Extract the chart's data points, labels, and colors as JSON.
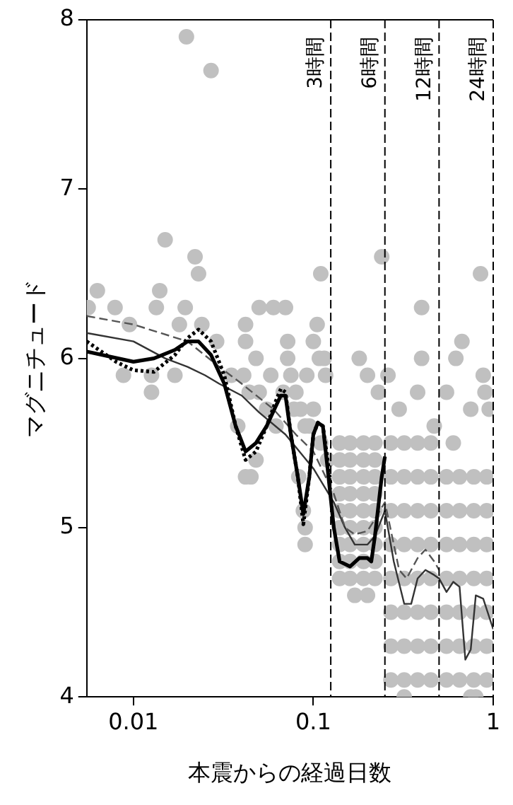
{
  "chart_data": {
    "type": "scatter",
    "xlabel": "本震からの経過日数",
    "ylabel": "マグニチュード",
    "log": "x",
    "xlim": [
      0.0055,
      1
    ],
    "xticks": [
      0.01,
      0.1,
      1
    ],
    "ylim": [
      4,
      8
    ],
    "yticks": [
      4,
      5,
      6,
      7,
      8
    ],
    "grid": false,
    "legend": false,
    "series": [
      {
        "color": "#c0c0c0",
        "marker": "circle",
        "x": [
          0.0056,
          0.0063,
          0.0079,
          0.0095,
          0.0088,
          0.0126,
          0.0126,
          0.0134,
          0.014,
          0.015,
          0.0194,
          0.018,
          0.017,
          0.0197,
          0.022,
          0.023,
          0.024,
          0.027,
          0.029,
          0.035,
          0.038,
          0.042,
          0.042,
          0.042,
          0.045,
          0.048,
          0.05,
          0.048,
          0.041,
          0.044,
          0.05,
          0.055,
          0.06,
          0.058,
          0.062,
          0.068,
          0.07,
          0.072,
          0.072,
          0.075,
          0.08,
          0.085,
          0.078,
          0.09,
          0.083,
          0.088,
          0.09,
          0.09,
          0.092,
          0.1,
          0.105,
          0.11,
          0.108,
          0.115,
          0.117,
          0.1,
          0.095,
          0.11,
          0.12,
          0.14,
          0.14,
          0.14,
          0.14,
          0.14,
          0.14,
          0.14,
          0.14,
          0.14,
          0.16,
          0.16,
          0.16,
          0.16,
          0.16,
          0.16,
          0.16,
          0.16,
          0.16,
          0.19,
          0.19,
          0.19,
          0.19,
          0.19,
          0.19,
          0.19,
          0.19,
          0.19,
          0.22,
          0.22,
          0.22,
          0.22,
          0.22,
          0.22,
          0.22,
          0.22,
          0.22,
          0.18,
          0.2,
          0.17,
          0.2,
          0.23,
          0.24,
          0.26,
          0.27,
          0.27,
          0.27,
          0.27,
          0.27,
          0.27,
          0.27,
          0.27,
          0.32,
          0.32,
          0.32,
          0.32,
          0.32,
          0.32,
          0.32,
          0.32,
          0.38,
          0.38,
          0.38,
          0.38,
          0.38,
          0.38,
          0.38,
          0.38,
          0.45,
          0.45,
          0.45,
          0.45,
          0.45,
          0.45,
          0.45,
          0.45,
          0.4,
          0.4,
          0.38,
          0.3,
          0.32,
          0.47,
          0.55,
          0.55,
          0.55,
          0.55,
          0.55,
          0.55,
          0.55,
          0.65,
          0.65,
          0.65,
          0.65,
          0.65,
          0.65,
          0.65,
          0.78,
          0.78,
          0.78,
          0.78,
          0.78,
          0.78,
          0.78,
          0.92,
          0.92,
          0.92,
          0.92,
          0.92,
          0.92,
          0.92,
          0.62,
          0.67,
          0.85,
          0.88,
          0.9,
          0.55,
          0.75,
          0.95,
          0.6,
          0.8,
          0.75
        ],
        "values": [
          6.3,
          6.4,
          6.3,
          6.2,
          5.9,
          5.9,
          5.8,
          6.3,
          6.4,
          6.7,
          6.3,
          6.2,
          5.9,
          7.9,
          6.6,
          6.5,
          6.2,
          7.7,
          6.1,
          5.9,
          5.6,
          6.2,
          6.1,
          5.3,
          5.3,
          5.4,
          6.3,
          6.0,
          5.9,
          5.8,
          5.8,
          5.7,
          6.3,
          5.9,
          5.6,
          5.8,
          6.3,
          6.1,
          6.0,
          5.9,
          5.8,
          5.7,
          5.7,
          5.6,
          5.3,
          5.1,
          5.0,
          4.9,
          5.9,
          6.1,
          6.2,
          6.5,
          6.0,
          6.0,
          5.9,
          5.7,
          5.6,
          5.5,
          5.4,
          5.5,
          5.4,
          5.3,
          5.2,
          5.1,
          5.0,
          4.9,
          4.8,
          4.7,
          5.5,
          5.4,
          5.3,
          5.2,
          5.1,
          5.0,
          4.9,
          4.8,
          4.7,
          5.5,
          5.4,
          5.3,
          5.2,
          5.1,
          5.0,
          4.9,
          4.8,
          4.7,
          5.5,
          5.4,
          5.3,
          5.2,
          5.1,
          5.0,
          4.9,
          4.8,
          4.7,
          6.0,
          5.9,
          4.6,
          4.6,
          5.8,
          6.6,
          5.9,
          5.5,
          5.3,
          5.1,
          4.9,
          4.7,
          4.5,
          4.3,
          4.1,
          5.5,
          5.3,
          5.1,
          4.9,
          4.7,
          4.5,
          4.3,
          4.1,
          5.5,
          5.3,
          5.1,
          4.9,
          4.7,
          4.5,
          4.3,
          4.1,
          5.5,
          5.3,
          5.1,
          4.9,
          4.7,
          4.5,
          4.3,
          4.1,
          6.3,
          6.0,
          5.8,
          5.7,
          4.0,
          5.6,
          5.3,
          5.1,
          4.9,
          4.7,
          4.5,
          4.3,
          4.1,
          5.3,
          5.1,
          4.9,
          4.7,
          4.5,
          4.3,
          4.1,
          5.3,
          5.1,
          4.9,
          4.7,
          4.5,
          4.3,
          4.1,
          5.3,
          5.1,
          4.9,
          4.7,
          4.5,
          4.3,
          4.1,
          6.0,
          6.1,
          6.5,
          5.9,
          5.8,
          5.8,
          5.7,
          5.7,
          5.5,
          4.0,
          4.0
        ]
      },
      {
        "type": "line",
        "color": "#000000",
        "marker": "none",
        "line_style": "dotted",
        "x": [
          0.0055,
          0.008,
          0.01,
          0.013,
          0.017,
          0.02,
          0.023,
          0.027,
          0.032,
          0.037,
          0.042,
          0.048,
          0.055,
          0.062,
          0.066,
          0.07,
          0.075,
          0.082,
          0.088,
          0.095,
          0.1,
          0.106,
          0.113,
          0.12,
          0.125
        ],
        "values": [
          6.1,
          5.98,
          5.93,
          5.92,
          6.02,
          6.12,
          6.17,
          6.1,
          5.9,
          5.6,
          5.4,
          5.45,
          5.6,
          5.75,
          5.82,
          5.8,
          5.55,
          5.3,
          5.02,
          5.3,
          5.55,
          5.62,
          5.6,
          5.4,
          5.25
        ]
      },
      {
        "type": "line",
        "color": "#000000",
        "marker": "none",
        "line_style": "solid",
        "x": [
          0.0055,
          0.01,
          0.013,
          0.017,
          0.02,
          0.023,
          0.027,
          0.032,
          0.037,
          0.042,
          0.048,
          0.055,
          0.062,
          0.066,
          0.07,
          0.075,
          0.082,
          0.088,
          0.095,
          0.1,
          0.106,
          0.113,
          0.12,
          0.13,
          0.14,
          0.16,
          0.18,
          0.2,
          0.21,
          0.22,
          0.24,
          0.25
        ],
        "values": [
          6.04,
          5.98,
          6.0,
          6.05,
          6.1,
          6.1,
          6.02,
          5.85,
          5.6,
          5.45,
          5.5,
          5.6,
          5.72,
          5.78,
          5.78,
          5.55,
          5.3,
          5.08,
          5.3,
          5.55,
          5.62,
          5.6,
          5.35,
          5.0,
          4.8,
          4.77,
          4.82,
          4.82,
          4.8,
          4.95,
          5.3,
          5.42
        ]
      },
      {
        "type": "line",
        "color": "#555555",
        "marker": "none",
        "line_style": "dashed",
        "x": [
          0.0055,
          0.01,
          0.02,
          0.03,
          0.04,
          0.06,
          0.08,
          0.1,
          0.13,
          0.15,
          0.17,
          0.2,
          0.22,
          0.25,
          0.3,
          0.33,
          0.38,
          0.42,
          0.47,
          0.5
        ],
        "values": [
          6.25,
          6.2,
          6.1,
          5.95,
          5.85,
          5.7,
          5.55,
          5.45,
          5.2,
          5.0,
          4.96,
          4.98,
          5.05,
          5.15,
          4.75,
          4.7,
          4.82,
          4.87,
          4.8,
          4.75
        ]
      },
      {
        "type": "line",
        "color": "#333333",
        "marker": "none",
        "line_style": "solid",
        "x": [
          0.0055,
          0.01,
          0.015,
          0.02,
          0.025,
          0.03,
          0.04,
          0.05,
          0.07,
          0.1,
          0.13,
          0.15,
          0.17,
          0.2,
          0.22,
          0.25,
          0.28,
          0.32,
          0.35,
          0.38,
          0.42,
          0.47,
          0.5,
          0.55,
          0.6,
          0.65,
          0.7,
          0.75,
          0.8,
          0.88,
          1
        ],
        "values": [
          6.15,
          6.1,
          6.0,
          5.95,
          5.9,
          5.85,
          5.78,
          5.68,
          5.55,
          5.35,
          5.15,
          5.0,
          4.9,
          4.9,
          4.95,
          5.1,
          4.8,
          4.55,
          4.55,
          4.7,
          4.75,
          4.72,
          4.7,
          4.62,
          4.68,
          4.65,
          4.22,
          4.28,
          4.6,
          4.58,
          4.4
        ]
      }
    ],
    "ref_lines": [
      {
        "axis": "x",
        "value": 0.125,
        "label": "3時間",
        "line_style": "dashed"
      },
      {
        "axis": "x",
        "value": 0.25,
        "label": "6時間",
        "line_style": "dashed"
      },
      {
        "axis": "x",
        "value": 0.5,
        "label": "12時間",
        "line_style": "dashed"
      },
      {
        "axis": "x",
        "value": 1,
        "label": "24時間",
        "line_style": "dashed"
      }
    ]
  }
}
